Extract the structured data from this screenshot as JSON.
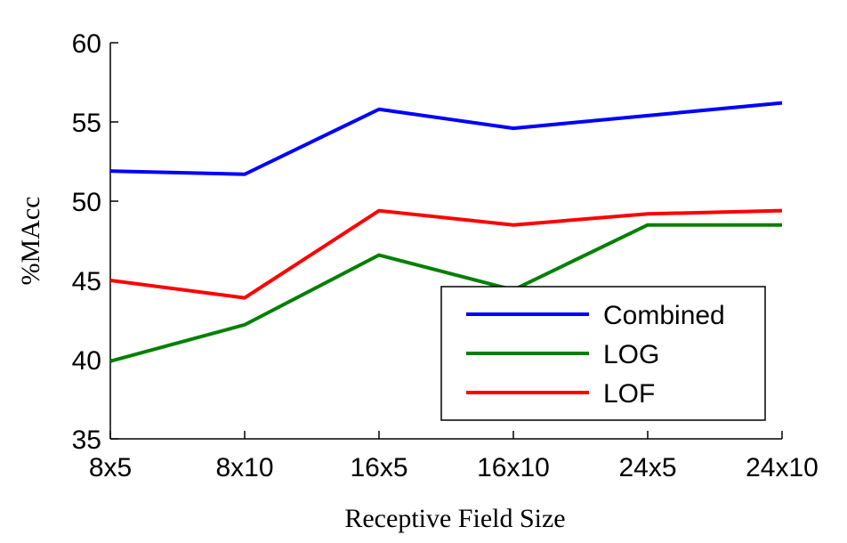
{
  "chart_data": {
    "type": "line",
    "title": "",
    "xlabel": "Receptive Field Size",
    "ylabel": "%MAcc",
    "categories": [
      "8x5",
      "8x10",
      "16x5",
      "16x10",
      "24x5",
      "24x10"
    ],
    "ylim": [
      35,
      60
    ],
    "yticks": [
      35,
      40,
      45,
      50,
      55,
      60
    ],
    "grid": false,
    "legend_position": "bottom-right",
    "series": [
      {
        "name": "Combined",
        "color": "#0000ff",
        "values": [
          51.9,
          51.7,
          55.8,
          54.6,
          55.4,
          56.2
        ]
      },
      {
        "name": "LOG",
        "color": "#008000",
        "values": [
          39.9,
          42.2,
          46.6,
          44.4,
          48.5,
          48.5
        ]
      },
      {
        "name": "LOF",
        "color": "#ff0000",
        "values": [
          45.0,
          43.9,
          49.4,
          48.5,
          49.2,
          49.4
        ]
      }
    ]
  }
}
